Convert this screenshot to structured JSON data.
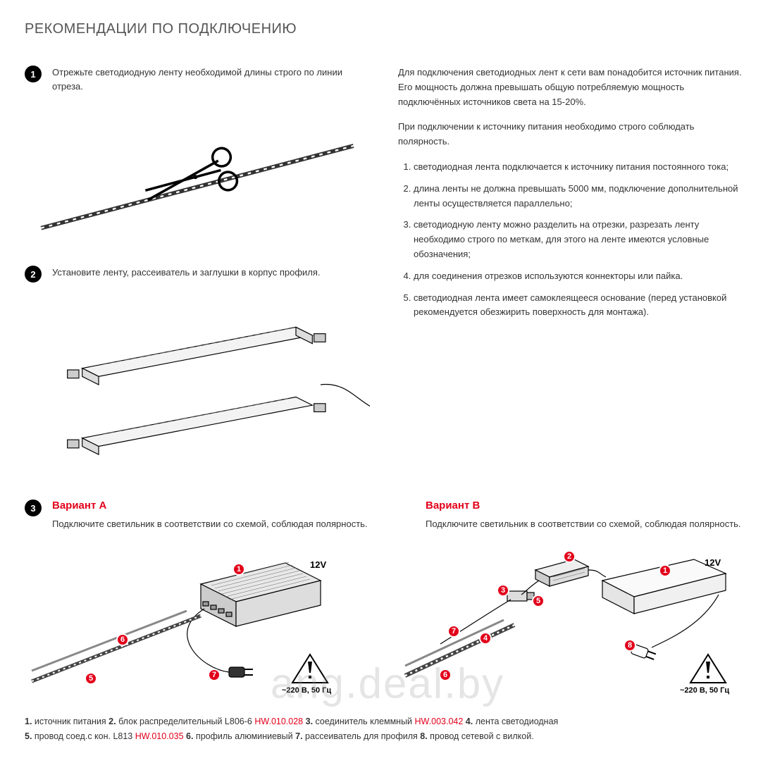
{
  "title": "РЕКОМЕНДАЦИИ ПО ПОДКЛЮЧЕНИЮ",
  "step1": {
    "num": "1",
    "text": "Отрежьте светодиодную ленту необходимой длины строго по линии отреза."
  },
  "step2": {
    "num": "2",
    "text": "Установите ленту, рассеиватель и заглушки в корпус профиля."
  },
  "step3": {
    "num": "3"
  },
  "intro": {
    "p1": "Для подключения светодиодных лент к сети вам понадобится источник питания. Его мощность должна превышать общую потребляемую мощность подключённых источников света на 15-20%.",
    "p2": "При подключении к источнику питания необходимо строго соблюдать полярность."
  },
  "rules": [
    "светодиодная лента подключается к источнику питания постоянного тока;",
    "длина ленты не должна превышать 5000 мм, подключение дополнительной ленты осуществляется параллельно;",
    "светодиодную ленту можно разделить на отрезки,  разрезать ленту необходимо строго по меткам, для этого на ленте имеются условные обозначения;",
    "для соединения отрезков используются коннекторы или пайка.",
    "светодиодная лента имеет самоклеящееся основание (перед установкой рекомендуется обезжирить поверхность для монтажа)."
  ],
  "variantA": {
    "title": "Вариант А",
    "text": "Подключите светильник в соответствии со схемой, соблюдая полярность.",
    "volt": "12V",
    "hz": "~220 В, 50 Гц",
    "callouts": [
      "1",
      "5",
      "6",
      "7"
    ]
  },
  "variantB": {
    "title": "Вариант В",
    "text": "Подключите светильник в соответствии со схемой, соблюдая полярность.",
    "volt": "12V",
    "hz": "~220 В, 50 Гц",
    "callouts": [
      "1",
      "2",
      "3",
      "4",
      "5",
      "6",
      "7",
      "8"
    ]
  },
  "legend": {
    "items": [
      {
        "n": "1.",
        "t": " источник питания "
      },
      {
        "n": "2.",
        "t": " блок распределительный L806-6 ",
        "code": "HW.010.028"
      },
      {
        "n": "3.",
        "t": " соединитель клеммный ",
        "code": "HW.003.042"
      },
      {
        "n": "4.",
        "t": " лента светодиодная"
      },
      {
        "n": "5.",
        "t": " провод соед.с кон. L813 ",
        "code": "HW.010.035"
      },
      {
        "n": "6.",
        "t": " профиль алюминиевый "
      },
      {
        "n": "7.",
        "t": " рассеиватель для профиля "
      },
      {
        "n": "8.",
        "t": " провод сетевой с вилкой."
      }
    ]
  },
  "watermark": "ang.deal.by",
  "colors": {
    "accent": "#e2001a",
    "text": "#333333",
    "black": "#000000"
  }
}
